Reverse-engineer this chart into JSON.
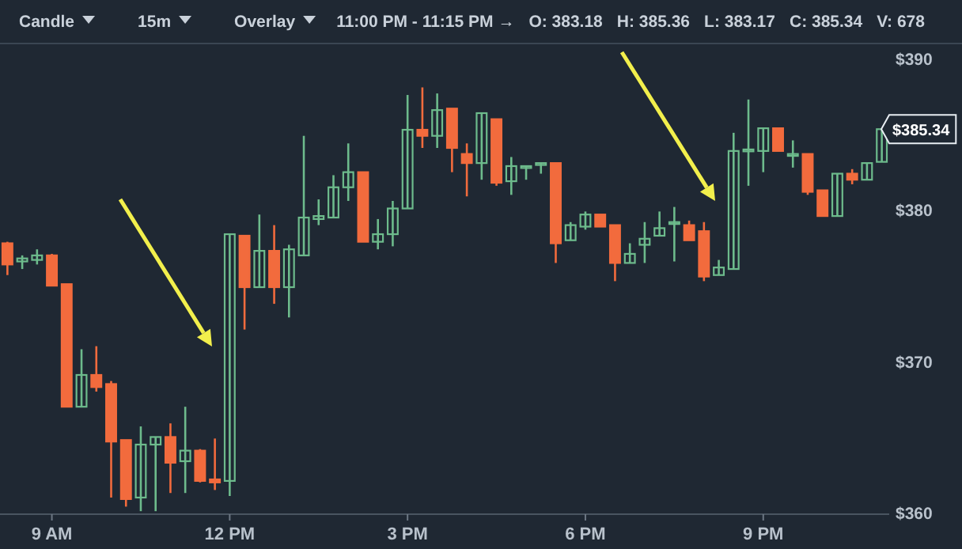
{
  "chart_data": {
    "type": "candlestick",
    "annotations": [
      "Candle",
      "15m",
      "Overlay",
      "11:00 PM - 11:15 PM →",
      "O: 383.18",
      "H: 385.36",
      "L: 383.17",
      "C: 385.34",
      "V: 678",
      "$385.34"
    ],
    "categories": [
      null,
      null,
      null,
      "9 AM",
      null,
      null,
      null,
      null,
      null,
      null,
      null,
      null,
      null,
      null,
      null,
      "12 PM",
      null,
      null,
      null,
      null,
      null,
      null,
      null,
      null,
      null,
      null,
      null,
      "3 PM",
      null,
      null,
      null,
      null,
      null,
      null,
      null,
      null,
      null,
      null,
      null,
      "6 PM",
      null,
      null,
      null,
      null,
      null,
      null,
      null,
      null,
      null,
      null,
      null,
      "9 PM",
      null,
      null,
      null,
      null,
      null,
      null,
      null,
      null
    ],
    "ohlc": [
      [
        377.8,
        377.9,
        375.7,
        376.4
      ],
      [
        376.6,
        377.0,
        376.1,
        376.8
      ],
      [
        376.7,
        377.4,
        376.4,
        377.0
      ],
      [
        377.0,
        377.1,
        375.0,
        375.0
      ],
      [
        375.1,
        375.1,
        367.0,
        367.0
      ],
      [
        367.0,
        370.8,
        367.0,
        369.1
      ],
      [
        369.1,
        371.0,
        368.0,
        368.3
      ],
      [
        368.5,
        368.7,
        361.0,
        364.7
      ],
      [
        364.8,
        364.8,
        360.4,
        360.9
      ],
      [
        361.0,
        365.7,
        360.1,
        364.5
      ],
      [
        364.5,
        365.0,
        360.1,
        365.0
      ],
      [
        365.0,
        365.9,
        361.3,
        363.3
      ],
      [
        363.4,
        367.0,
        361.3,
        364.1
      ],
      [
        364.1,
        364.2,
        362.0,
        362.1
      ],
      [
        362.2,
        364.9,
        361.5,
        362.0
      ],
      [
        362.1,
        378.4,
        361.1,
        378.4
      ],
      [
        378.3,
        378.3,
        372.1,
        374.9
      ],
      [
        374.9,
        379.7,
        374.9,
        377.3
      ],
      [
        377.3,
        379.0,
        373.8,
        374.9
      ],
      [
        374.9,
        377.7,
        372.9,
        377.4
      ],
      [
        377.0,
        384.9,
        377.0,
        379.5
      ],
      [
        379.4,
        380.7,
        379.0,
        379.6
      ],
      [
        379.5,
        382.3,
        379.5,
        381.5
      ],
      [
        381.5,
        384.4,
        380.6,
        382.5
      ],
      [
        382.5,
        382.5,
        377.9,
        377.9
      ],
      [
        377.9,
        379.4,
        377.4,
        378.4
      ],
      [
        378.4,
        380.6,
        377.6,
        380.1
      ],
      [
        380.1,
        387.6,
        380.1,
        385.3
      ],
      [
        385.3,
        388.1,
        384.1,
        384.9
      ],
      [
        384.9,
        387.7,
        384.1,
        386.6
      ],
      [
        386.7,
        386.7,
        382.5,
        384.1
      ],
      [
        383.7,
        384.4,
        380.9,
        383.1
      ],
      [
        383.1,
        386.4,
        382.0,
        386.4
      ],
      [
        386.0,
        386.0,
        381.6,
        381.8
      ],
      [
        381.9,
        383.5,
        381.0,
        382.9
      ],
      [
        382.8,
        382.9,
        382.0,
        382.9
      ],
      [
        383.0,
        383.1,
        382.4,
        383.1
      ],
      [
        383.1,
        383.1,
        376.5,
        377.8
      ],
      [
        378.0,
        379.2,
        378.0,
        379.0
      ],
      [
        378.9,
        379.9,
        378.7,
        379.7
      ],
      [
        379.7,
        379.7,
        378.9,
        378.9
      ],
      [
        379.0,
        379.0,
        375.3,
        376.5
      ],
      [
        376.5,
        377.8,
        376.5,
        377.1
      ],
      [
        377.7,
        379.2,
        376.5,
        378.1
      ],
      [
        378.3,
        379.9,
        378.3,
        378.8
      ],
      [
        379.1,
        380.2,
        376.6,
        379.2
      ],
      [
        379.0,
        379.3,
        378.0,
        378.0
      ],
      [
        378.6,
        379.2,
        375.3,
        375.6
      ],
      [
        375.7,
        376.7,
        375.7,
        376.2
      ],
      [
        376.1,
        385.1,
        376.1,
        383.9
      ],
      [
        383.9,
        387.3,
        381.6,
        384.0
      ],
      [
        383.9,
        385.4,
        382.5,
        385.4
      ],
      [
        385.4,
        385.4,
        383.9,
        383.9
      ],
      [
        383.6,
        384.6,
        382.8,
        383.7
      ],
      [
        383.7,
        383.7,
        381.0,
        381.2
      ],
      [
        381.3,
        381.3,
        379.6,
        379.6
      ],
      [
        379.6,
        382.4,
        379.6,
        382.4
      ],
      [
        382.4,
        382.7,
        381.7,
        382.0
      ],
      [
        382.0,
        383.1,
        382.0,
        383.1
      ],
      [
        383.18,
        385.36,
        383.17,
        385.34
      ]
    ],
    "colors": [
      "#f26b3d",
      "#6dbb8c",
      "#6dbb8c",
      "#f26b3d",
      "#f26b3d",
      "#6dbb8c",
      "#f26b3d",
      "#f26b3d",
      "#f26b3d",
      "#6dbb8c",
      "#6dbb8c",
      "#f26b3d",
      "#6dbb8c",
      "#f26b3d",
      "#f26b3d",
      "#6dbb8c",
      "#f26b3d",
      "#6dbb8c",
      "#f26b3d",
      "#6dbb8c",
      "#6dbb8c",
      "#6dbb8c",
      "#6dbb8c",
      "#6dbb8c",
      "#f26b3d",
      "#6dbb8c",
      "#6dbb8c",
      "#6dbb8c",
      "#f26b3d",
      "#6dbb8c",
      "#f26b3d",
      "#f26b3d",
      "#6dbb8c",
      "#f26b3d",
      "#6dbb8c",
      "#6dbb8c",
      "#6dbb8c",
      "#f26b3d",
      "#6dbb8c",
      "#6dbb8c",
      "#f26b3d",
      "#f26b3d",
      "#6dbb8c",
      "#6dbb8c",
      "#6dbb8c",
      "#6dbb8c",
      "#f26b3d",
      "#f26b3d",
      "#6dbb8c",
      "#6dbb8c",
      "#6dbb8c",
      "#6dbb8c",
      "#f26b3d",
      "#6dbb8c",
      "#f26b3d",
      "#f26b3d",
      "#6dbb8c",
      "#f26b3d",
      "#6dbb8c",
      "#6dbb8c"
    ],
    "ylim": [
      359.9,
      391.0
    ],
    "yticks": [
      {
        "value": 360,
        "label": "$360"
      },
      {
        "value": 370,
        "label": "$370"
      },
      {
        "value": 380,
        "label": "$380"
      },
      {
        "value": 390,
        "label": "$390"
      }
    ]
  }
}
